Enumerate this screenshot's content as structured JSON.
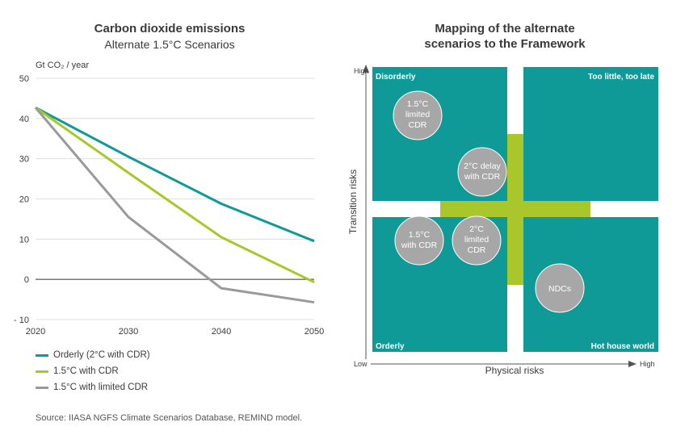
{
  "left_chart": {
    "title": "Carbon dioxide emissions",
    "subtitle": "Alternate 1.5°C Scenarios",
    "unit_label": "Gt CO₂ / year"
  },
  "right_chart": {
    "title_line1": "Mapping of the alternate",
    "title_line2": "scenarios to the Framework",
    "quadrants": {
      "top_left": "Disorderly",
      "top_right": "Too little, too late",
      "bottom_left": "Orderly",
      "bottom_right": "Hot house world"
    },
    "bubbles": [
      {
        "id": "limited-cdr-top",
        "lines": [
          "1.5°C",
          "limited",
          "CDR"
        ]
      },
      {
        "id": "delay-cdr",
        "lines": [
          "2°C delay",
          "with CDR"
        ]
      },
      {
        "id": "with-cdr",
        "lines": [
          "1.5°C",
          "with CDR"
        ]
      },
      {
        "id": "limited-cdr-2c",
        "lines": [
          "2°C",
          "limited",
          "CDR"
        ]
      },
      {
        "id": "ndcs",
        "lines": [
          "NDCs"
        ]
      }
    ],
    "y_axis": {
      "label": "Transition risks",
      "low": "Low",
      "high": "High"
    },
    "x_axis": {
      "label": "Physical risks",
      "high": "High"
    }
  },
  "colors": {
    "teal": "#0f9a98",
    "lime": "#a9c72a",
    "grey": "#9a9a9a",
    "axis": "#555555",
    "grid": "#d8d8d8"
  },
  "chart_data": {
    "type": "line",
    "title": "Carbon dioxide emissions",
    "subtitle": "Alternate 1.5°C Scenarios",
    "ylabel": "Gt CO₂ / year",
    "x": [
      2020,
      2030,
      2040,
      2050
    ],
    "ylim": [
      -10,
      50
    ],
    "yticks": [
      -10,
      0,
      10,
      20,
      30,
      40,
      50
    ],
    "ytick_labels": [
      "- 10",
      "0",
      "10",
      "20",
      "30",
      "40",
      "50"
    ],
    "grid": true,
    "legend_position": "bottom-left",
    "series": [
      {
        "name": "Orderly (2°C with CDR)",
        "color": "#0f9a98",
        "values": [
          42.7,
          30.5,
          18.8,
          9.5
        ]
      },
      {
        "name": "1.5°C with CDR",
        "color": "#a9c72a",
        "values": [
          42.7,
          26.5,
          10.5,
          -0.7
        ]
      },
      {
        "name": "1.5°C with limited CDR",
        "color": "#9a9a9a",
        "values": [
          42.7,
          15.5,
          -2.2,
          -5.7
        ]
      }
    ]
  },
  "source": "Source: IIASA NGFS Climate Scenarios Database, REMIND model."
}
